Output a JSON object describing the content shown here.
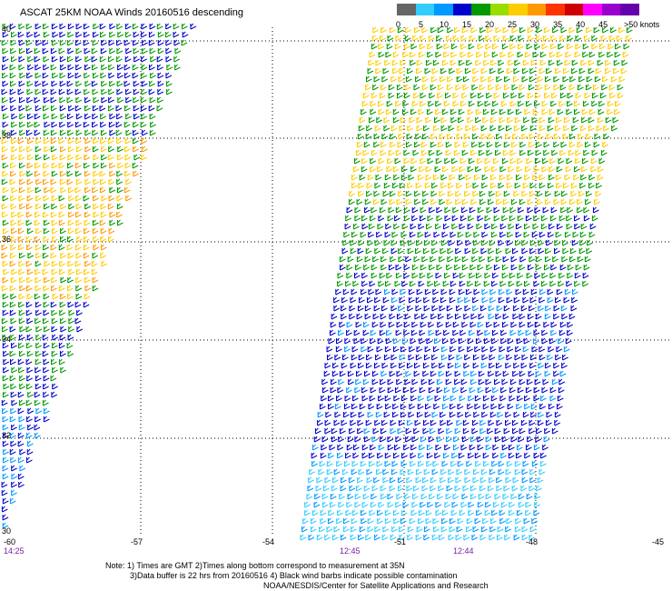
{
  "title": "ASCAT 25KM NOAA Winds 20160516 descending",
  "legend": {
    "labels": [
      "0",
      "5",
      "10",
      "15",
      "20",
      "25",
      "30",
      "35",
      "40",
      "45"
    ],
    "unit": ">50 knots",
    "colors": [
      "#666666",
      "#33ccff",
      "#0099ff",
      "#0000cc",
      "#009900",
      "#99dd00",
      "#ffcc00",
      "#ff9900",
      "#ff3300",
      "#cc0000",
      "#ff00ff",
      "#9900cc",
      "#6600aa"
    ]
  },
  "map": {
    "lat_labels": [
      "40",
      "38",
      "36",
      "34",
      "32",
      "30"
    ],
    "lon_labels": [
      "-60",
      "-57",
      "-54",
      "-51",
      "-48",
      "-45"
    ],
    "pass_times": [
      "14:25",
      "12:45",
      "12:44"
    ]
  },
  "notes": {
    "line1": "Note: 1) Times are GMT 2)Times along bottom correspond to measurement at 35N",
    "line2": "3)Data buffer is 22 hrs from 20160516 4) Black wind barbs indicate possible contamination",
    "line3": "NOAA/NESDIS/Center for Satellite Applications and Research"
  }
}
